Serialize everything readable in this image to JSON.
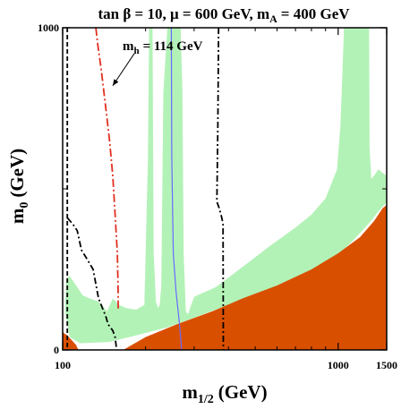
{
  "chart_data": {
    "type": "area",
    "title": {
      "tanb_sym": "tan β = 10",
      "mu_sym": "μ = 600 GeV",
      "mA_main": "m",
      "mA_sub": "A",
      "mA_rest": "= 400 GeV"
    },
    "xlabel": {
      "main": "m",
      "sub": "1/2",
      "rest": "(GeV)"
    },
    "ylabel": {
      "main": "m",
      "sub": "0",
      "rest": "(GeV)"
    },
    "x_scale": "log",
    "xlim": [
      100,
      1500
    ],
    "ylim": [
      0,
      1000
    ],
    "x_ticks": [
      {
        "value": 100,
        "label": "100"
      },
      {
        "value": 1000,
        "label": "1000"
      },
      {
        "value": 1500,
        "label": "1500"
      }
    ],
    "x_minor_ticks": [
      200,
      300,
      400,
      500,
      600,
      700,
      800,
      900
    ],
    "y_ticks": [
      {
        "value": 0,
        "label": "0"
      },
      {
        "value": 1000,
        "label": "1000"
      }
    ],
    "y_minor_ticks": [
      500
    ],
    "annotation": {
      "main": "m",
      "sub": "h",
      "rest": "= 114 GeV",
      "x": 165,
      "y": 930
    },
    "colors": {
      "excluded_stau_lsp": "#d94f00",
      "wmap_region": "#b3f2b7",
      "higgs_line": "#e03020",
      "chargino_line": "#000000",
      "bsgamma_line": "#000000",
      "g2_line": "#6a6aff",
      "white_gap": "#ffffff"
    },
    "series": [
      {
        "kind": "fill",
        "color_key": "wmap_region",
        "points": [
          [
            102,
            120
          ],
          [
            106,
            40
          ],
          [
            116,
            20
          ],
          [
            140,
            20
          ],
          [
            175,
            40
          ],
          [
            230,
            60
          ],
          [
            300,
            90
          ],
          [
            400,
            130
          ],
          [
            550,
            170
          ],
          [
            700,
            200
          ],
          [
            850,
            240
          ],
          [
            1000,
            280
          ],
          [
            1150,
            330
          ],
          [
            1300,
            380
          ],
          [
            1400,
            420
          ],
          [
            1500,
            450
          ],
          [
            1500,
            540
          ],
          [
            1400,
            560
          ],
          [
            1320,
            530
          ],
          [
            1300,
            630
          ],
          [
            1295,
            1000
          ],
          [
            1050,
            1000
          ],
          [
            1045,
            950
          ],
          [
            1020,
            700
          ],
          [
            990,
            560
          ],
          [
            900,
            470
          ],
          [
            800,
            420
          ],
          [
            700,
            380
          ],
          [
            560,
            320
          ],
          [
            470,
            270
          ],
          [
            430,
            245
          ],
          [
            360,
            195
          ],
          [
            300,
            165
          ],
          [
            290,
            130
          ],
          [
            285,
            110
          ],
          [
            280,
            120
          ],
          [
            275,
            300
          ],
          [
            272,
            800
          ],
          [
            268,
            1000
          ],
          [
            240,
            1000
          ],
          [
            232,
            800
          ],
          [
            228,
            200
          ],
          [
            225,
            140
          ],
          [
            222,
            130
          ],
          [
            218,
            150
          ],
          [
            214,
            300
          ],
          [
            212,
            1000
          ],
          [
            206,
            1000
          ],
          [
            204,
            600
          ],
          [
            198,
            140
          ],
          [
            185,
            125
          ],
          [
            170,
            130
          ],
          [
            160,
            140
          ],
          [
            152,
            160
          ],
          [
            145,
            120
          ],
          [
            135,
            150
          ],
          [
            125,
            160
          ],
          [
            118,
            170
          ],
          [
            112,
            200
          ],
          [
            106,
            230
          ],
          [
            103,
            220
          ],
          [
            102,
            120
          ]
        ]
      },
      {
        "kind": "fill",
        "color_key": "white_gap",
        "points": [
          [
            112,
            20
          ],
          [
            150,
            25
          ],
          [
            185,
            45
          ],
          [
            240,
            70
          ],
          [
            300,
            100
          ],
          [
            400,
            140
          ],
          [
            550,
            185
          ],
          [
            700,
            215
          ],
          [
            850,
            255
          ],
          [
            1000,
            295
          ],
          [
            1150,
            345
          ],
          [
            1300,
            395
          ],
          [
            1400,
            430
          ],
          [
            1500,
            458
          ],
          [
            1500,
            440
          ],
          [
            1400,
            410
          ],
          [
            1300,
            370
          ],
          [
            1150,
            318
          ],
          [
            1000,
            268
          ],
          [
            850,
            228
          ],
          [
            700,
            188
          ],
          [
            550,
            158
          ],
          [
            400,
            118
          ],
          [
            300,
            80
          ],
          [
            230,
            52
          ],
          [
            175,
            32
          ],
          [
            140,
            14
          ],
          [
            115,
            12
          ],
          [
            112,
            20
          ]
        ]
      },
      {
        "kind": "fill",
        "color_key": "excluded_stau_lsp",
        "points": [
          [
            166,
            0
          ],
          [
            200,
            40
          ],
          [
            260,
            80
          ],
          [
            350,
            120
          ],
          [
            450,
            160
          ],
          [
            600,
            200
          ],
          [
            800,
            250
          ],
          [
            1000,
            300
          ],
          [
            1200,
            350
          ],
          [
            1350,
            400
          ],
          [
            1450,
            440
          ],
          [
            1500,
            450
          ],
          [
            1500,
            0
          ]
        ]
      },
      {
        "kind": "fill",
        "color_key": "excluded_stau_lsp",
        "points": [
          [
            100,
            0
          ],
          [
            100,
            55
          ],
          [
            104,
            45
          ],
          [
            108,
            30
          ],
          [
            112,
            15
          ],
          [
            114,
            0
          ]
        ]
      },
      {
        "kind": "line",
        "color_key": "g2_line",
        "points": [
          [
            270,
            0
          ],
          [
            268,
            40
          ],
          [
            264,
            100
          ],
          [
            258,
            180
          ],
          [
            252,
            300
          ],
          [
            249,
            600
          ],
          [
            248,
            1000
          ]
        ]
      },
      {
        "kind": "line",
        "color_key": "chargino_line",
        "dash": "5,3",
        "points": [
          [
            104,
            1000
          ],
          [
            104,
            0
          ]
        ]
      },
      {
        "kind": "line",
        "color_key": "higgs_line",
        "dash": "9,3,2,3",
        "points": [
          [
            132,
            1000
          ],
          [
            134,
            950
          ],
          [
            138,
            870
          ],
          [
            143,
            760
          ],
          [
            148,
            650
          ],
          [
            152,
            540
          ],
          [
            155,
            420
          ],
          [
            158,
            300
          ],
          [
            159,
            180
          ],
          [
            159,
            120
          ]
        ]
      },
      {
        "kind": "line",
        "color_key": "bsgamma_line",
        "dash": "7,3,2,3",
        "points": [
          [
            104,
            410
          ],
          [
            109,
            390
          ],
          [
            113,
            370
          ],
          [
            117,
            310
          ],
          [
            123,
            280
          ],
          [
            129,
            250
          ],
          [
            135,
            160
          ],
          [
            141,
            120
          ],
          [
            144,
            100
          ],
          [
            146,
            80
          ],
          [
            152,
            60
          ],
          [
            155,
            40
          ],
          [
            157,
            0
          ]
        ]
      },
      {
        "kind": "line",
        "color_key": "bsgamma_line",
        "dash": "7,3,2,3",
        "points": [
          [
            368,
            1000
          ],
          [
            366,
            700
          ],
          [
            363,
            460
          ],
          [
            370,
            440
          ],
          [
            378,
            410
          ],
          [
            382,
            390
          ],
          [
            383,
            0
          ]
        ]
      },
      {
        "kind": "arrow",
        "color_key": "chargino_line",
        "from": [
          182,
          920
        ],
        "to": [
          152,
          820
        ]
      }
    ]
  }
}
